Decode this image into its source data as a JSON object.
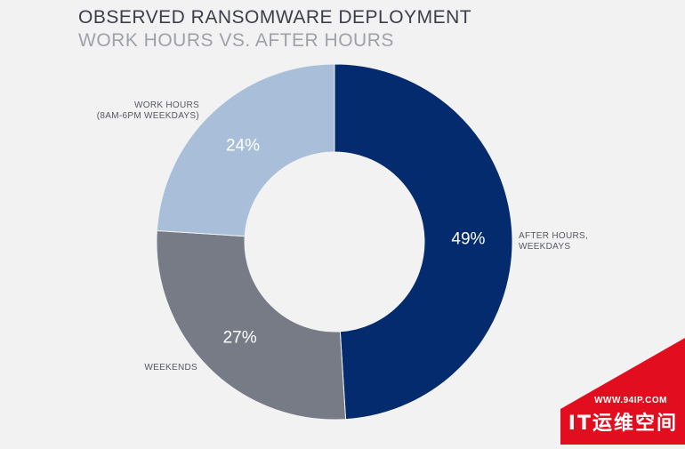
{
  "chart_data": {
    "type": "pie",
    "title": "OBSERVED RANSOMWARE DEPLOYMENT",
    "subtitle": "WORK HOURS VS. AFTER HOURS",
    "categories": [
      "AFTER HOURS, WEEKDAYS",
      "WEEKENDS",
      "WORK HOURS (8AM-6PM WEEKDAYS)"
    ],
    "values": [
      49,
      27,
      24
    ],
    "value_labels": [
      "49%",
      "27%",
      "24%"
    ],
    "category_label_lines": [
      [
        "AFTER HOURS,",
        "WEEKDAYS"
      ],
      [
        "WEEKENDS"
      ],
      [
        "WORK HOURS",
        "(8AM-6PM WEEKDAYS)"
      ]
    ],
    "colors": [
      "#032b6d",
      "#767b86",
      "#a9bfd9"
    ],
    "donut": true,
    "legend": "none"
  },
  "watermark": {
    "url": "WWW.94IP.COM",
    "name": "IT运维空间",
    "color": "#e30d20"
  }
}
